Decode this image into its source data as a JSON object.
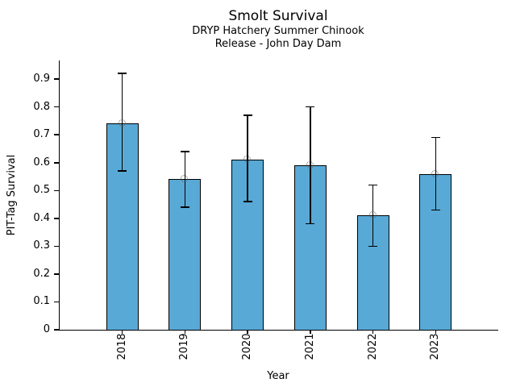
{
  "chart_data": {
    "type": "bar",
    "title": "Smolt Survival",
    "subtitle_lines": [
      "DRYP Hatchery Summer Chinook",
      "Release - John Day Dam"
    ],
    "xlabel": "Year",
    "ylabel": "PIT-Tag Survival",
    "categories": [
      "2018",
      "2019",
      "2020",
      "2021",
      "2022",
      "2023"
    ],
    "values": [
      0.74,
      0.54,
      0.61,
      0.59,
      0.41,
      0.56
    ],
    "error_low": [
      0.57,
      0.44,
      0.46,
      0.38,
      0.3,
      0.43
    ],
    "error_high": [
      0.92,
      0.64,
      0.77,
      0.8,
      0.52,
      0.69
    ],
    "marker": "open-circle",
    "ylim": [
      0,
      0.967
    ],
    "yticks": [
      0,
      0.1,
      0.2,
      0.3,
      0.4,
      0.5,
      0.6,
      0.7,
      0.8,
      0.9
    ],
    "ytick_labels": [
      "0",
      "0.1",
      "0.2",
      "0.3",
      "0.4",
      "0.5",
      "0.6",
      "0.7",
      "0.8",
      "0.9"
    ],
    "grid": false,
    "legend": "none",
    "colors": {
      "bar_fill": "#58a9d6",
      "bar_edge": "#000000",
      "error_bar": "#000000",
      "marker_edge": "#595959",
      "axis": "#000000",
      "text": "#000000",
      "background": "#ffffff"
    }
  }
}
